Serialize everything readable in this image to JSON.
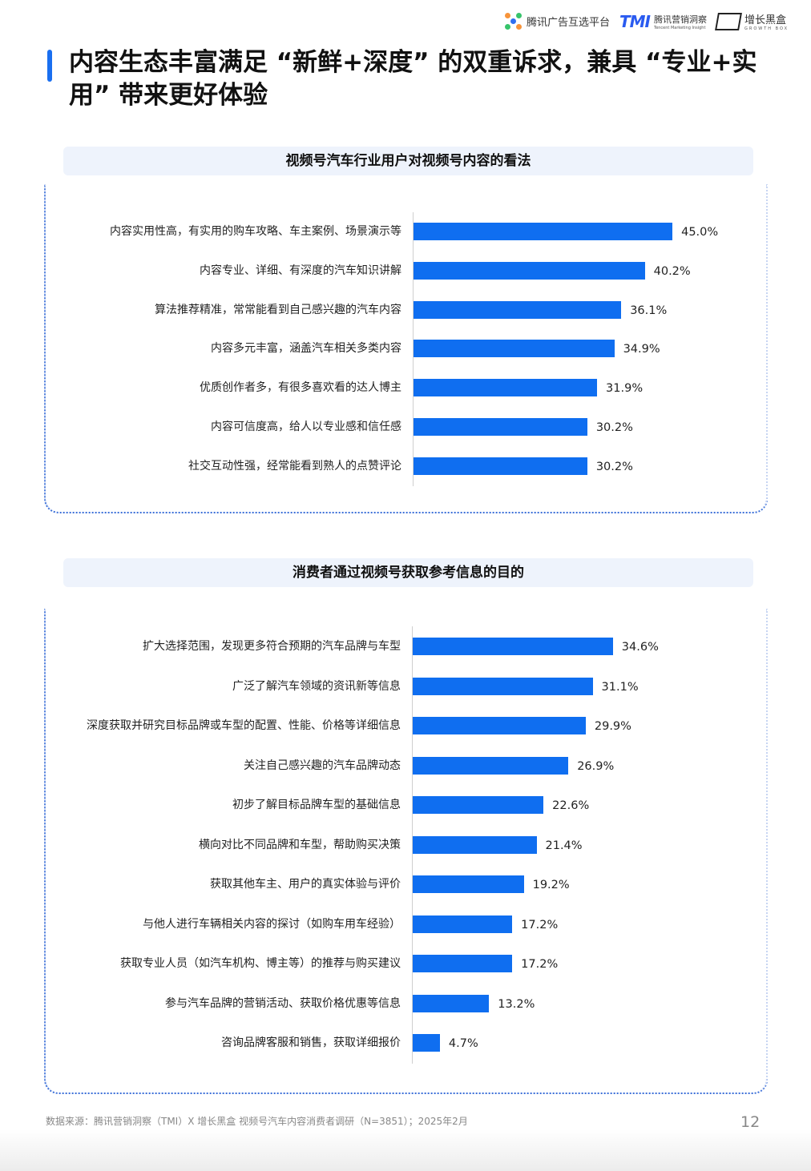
{
  "header": {
    "logo1": "腾讯广告互选平台",
    "logo2_mark": "TMI",
    "logo2": "腾讯营销洞察",
    "logo2_sub": "Tencent Marketing Insight",
    "logo3": "增长黑盒",
    "logo3_sub": "GROWTH BOX"
  },
  "title": "内容生态丰富满足 “新鲜+深度” 的双重诉求，兼具 “专业+实用” 带来更好体验",
  "colors": {
    "bar": "#0f6ef0",
    "accent": "#1a6ff0",
    "header_bg": "#eef3fc"
  },
  "chart_data": [
    {
      "type": "bar",
      "orientation": "horizontal",
      "title": "视频号汽车行业用户对视频号内容的看法",
      "unit": "%",
      "categories": [
        "内容实用性高，有实用的购车攻略、车主案例、场景演示等",
        "内容专业、详细、有深度的汽车知识讲解",
        "算法推荐精准，常常能看到自己感兴趣的汽车内容",
        "内容多元丰富，涵盖汽车相关多类内容",
        "优质创作者多，有很多喜欢看的达人博主",
        "内容可信度高，给人以专业感和信任感",
        "社交互动性强，经常能看到熟人的点赞评论"
      ],
      "values": [
        45.0,
        40.2,
        36.1,
        34.9,
        31.9,
        30.2,
        30.2
      ],
      "labels": [
        "45.0%",
        "40.2%",
        "36.1%",
        "34.9%",
        "31.9%",
        "30.2%",
        "30.2%"
      ]
    },
    {
      "type": "bar",
      "orientation": "horizontal",
      "title": "消费者通过视频号获取参考信息的目的",
      "unit": "%",
      "categories": [
        "扩大选择范围，发现更多符合预期的汽车品牌与车型",
        "广泛了解汽车领域的资讯新等信息",
        "深度获取并研究目标品牌或车型的配置、性能、价格等详细信息",
        "关注自己感兴趣的汽车品牌动态",
        "初步了解目标品牌车型的基础信息",
        "横向对比不同品牌和车型，帮助购买决策",
        "获取其他车主、用户的真实体验与评价",
        "与他人进行车辆相关内容的探讨（如购车用车经验）",
        "获取专业人员（如汽车机构、博主等）的推荐与购买建议",
        "参与汽车品牌的营销活动、获取价格优惠等信息",
        "咨询品牌客服和销售，获取详细报价"
      ],
      "values": [
        34.6,
        31.1,
        29.9,
        26.9,
        22.6,
        21.4,
        19.2,
        17.2,
        17.2,
        13.2,
        4.7
      ],
      "labels": [
        "34.6%",
        "31.1%",
        "29.9%",
        "26.9%",
        "22.6%",
        "21.4%",
        "19.2%",
        "17.2%",
        "17.2%",
        "13.2%",
        "4.7%"
      ]
    }
  ],
  "footer": {
    "source": "数据来源：腾讯营销洞察（TMI）X 增长黑盒  视频号汽车内容消费者调研（N=3851）；2025年2月",
    "page": "12"
  }
}
